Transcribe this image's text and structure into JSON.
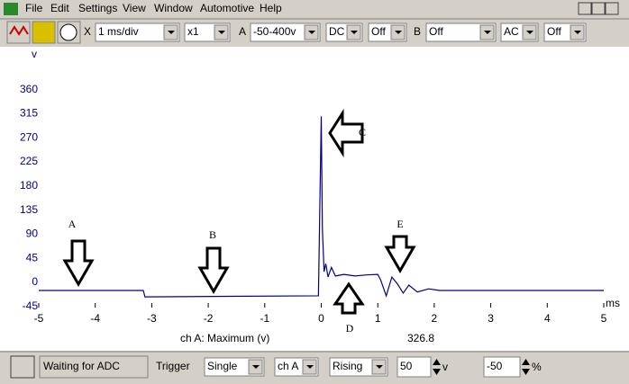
{
  "menu": [
    "File",
    "Edit",
    "Settings",
    "View",
    "Window",
    "Automotive",
    "Help"
  ],
  "toolbar": {
    "x_label": "X",
    "timebase": "1 ms/div",
    "zoom": "x1",
    "a_label": "A",
    "a_range": "-50-400v",
    "a_coupling": "DC",
    "a_extra": "Off",
    "b_label": "B",
    "b_range": "Off",
    "b_coupling": "AC",
    "b_extra": "Off"
  },
  "chart_data": {
    "type": "line",
    "y_label": "v",
    "x_label": "ms",
    "x": [
      -5,
      -3.15,
      -3.12,
      -0.05,
      0,
      0.02,
      0.05,
      0.08,
      0.12,
      0.18,
      0.25,
      0.4,
      0.6,
      0.8,
      1.0,
      1.05,
      1.15,
      1.25,
      1.35,
      1.45,
      1.55,
      1.7,
      1.9,
      2.1,
      5
    ],
    "series": [
      {
        "name": "ch A",
        "color": "#00008b",
        "values": [
          -15,
          -15,
          -27,
          -25,
          310,
          100,
          20,
          35,
          10,
          28,
          12,
          15,
          12,
          14,
          15,
          5,
          -25,
          10,
          -3,
          -20,
          -5,
          -18,
          -12,
          -15,
          -15
        ]
      }
    ],
    "xlim": [
      -5,
      5
    ],
    "xticks": [
      -5,
      -4,
      -3,
      -2,
      -1,
      0,
      1,
      2,
      3,
      4,
      5
    ],
    "ylim": [
      -52,
      435
    ],
    "yticks": [
      -45,
      0,
      45,
      90,
      135,
      180,
      225,
      270,
      315,
      360
    ],
    "annotations": [
      "A",
      "B",
      "C",
      "D",
      "E"
    ],
    "measurement": {
      "label": "ch A: Maximum (v)",
      "value": "326.8"
    }
  },
  "status": {
    "state": "Waiting for ADC",
    "trigger_label": "Trigger",
    "trigger_mode": "Single",
    "trigger_channel": "ch A",
    "trigger_edge": "Rising",
    "threshold": "50",
    "threshold_unit": "v",
    "pre_trigger": "-50",
    "pre_trigger_unit": "%"
  }
}
